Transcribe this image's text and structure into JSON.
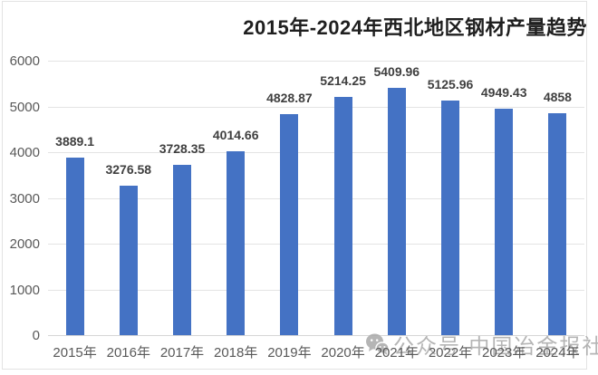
{
  "title": "2015年-2024年西北地区钢材产量趋势",
  "watermark": {
    "icon": "wechat-icon",
    "text": "公众号 中国冶金报社"
  },
  "colors": {
    "bar": "#4472c4",
    "gridline": "#e4e4e4",
    "axis_line": "#d6d6d6",
    "frame_border": "#e3e3e3",
    "title_text": "#1f1f1f",
    "value_label_text": "#3f3f3f",
    "tick_text": "#595959",
    "watermark_text": "#a9a9a9",
    "background": "#ffffff"
  },
  "chart_data": {
    "type": "bar",
    "title": "2015年-2024年西北地区钢材产量趋势",
    "categories": [
      "2015年",
      "2016年",
      "2017年",
      "2018年",
      "2019年",
      "2020年",
      "2021年",
      "2022年",
      "2023年",
      "2024年"
    ],
    "values": [
      3889.1,
      3276.58,
      3728.35,
      4014.66,
      4828.87,
      5214.25,
      5409.96,
      5125.96,
      4949.43,
      4858
    ],
    "value_labels": [
      "3889.1",
      "3276.58",
      "3728.35",
      "4014.66",
      "4828.87",
      "5214.25",
      "5409.96",
      "5125.96",
      "4949.43",
      "4858"
    ],
    "xlabel": "",
    "ylabel": "",
    "ylim": [
      0,
      6000
    ],
    "yticks": [
      0,
      1000,
      2000,
      3000,
      4000,
      5000,
      6000
    ],
    "grid": true,
    "legend": false,
    "data_labels": "outside-end"
  }
}
